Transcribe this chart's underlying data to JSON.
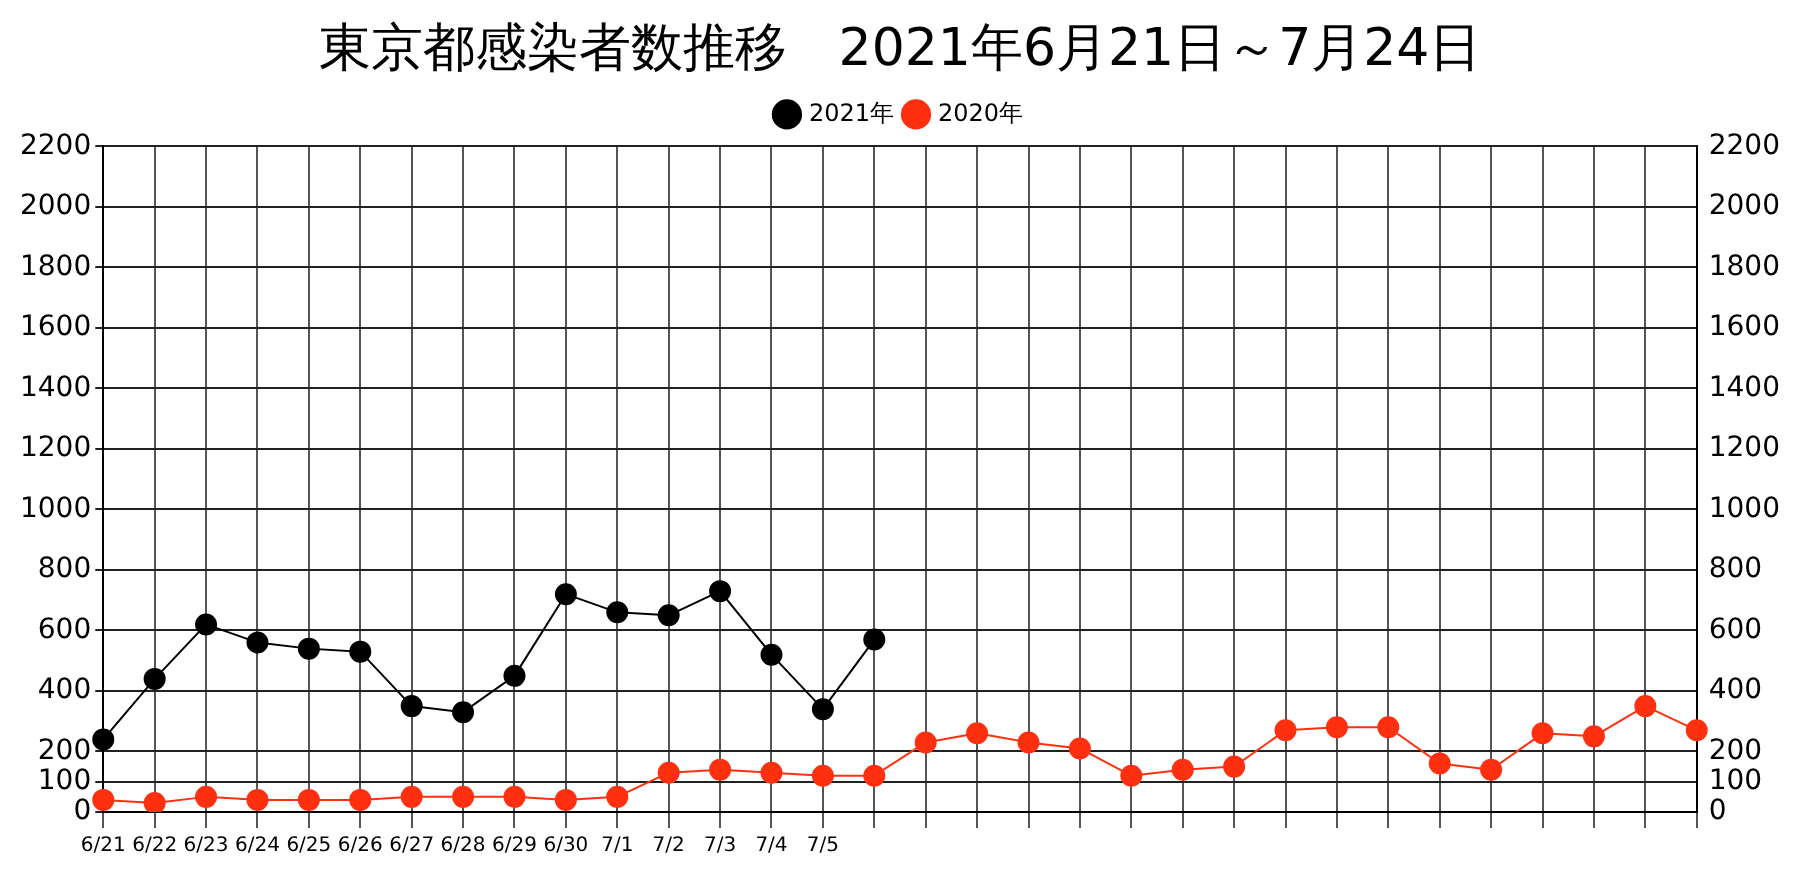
{
  "chart_data": {
    "type": "line",
    "title": "東京都感染者数推移　2021年6月21日～7月24日",
    "categories": [
      "6/21",
      "6/22",
      "6/23",
      "6/24",
      "6/25",
      "6/26",
      "6/27",
      "6/28",
      "6/29",
      "6/30",
      "7/1",
      "7/2",
      "7/3",
      "7/4",
      "7/5",
      null,
      null,
      null,
      null,
      null,
      null,
      null,
      null,
      null,
      null,
      null,
      null,
      null,
      null,
      null,
      null,
      null
    ],
    "series": [
      {
        "name": "2021年",
        "color": "#000000",
        "values": [
          240,
          440,
          620,
          560,
          540,
          530,
          350,
          330,
          450,
          720,
          660,
          650,
          730,
          520,
          340,
          570,
          null,
          null,
          null,
          null,
          null,
          null,
          null,
          null,
          null,
          null,
          null,
          null,
          null,
          null,
          null,
          null
        ]
      },
      {
        "name": "2020年",
        "color": "#ff3010",
        "values": [
          40,
          30,
          50,
          40,
          40,
          40,
          50,
          50,
          50,
          40,
          50,
          130,
          140,
          130,
          120,
          120,
          230,
          260,
          230,
          210,
          120,
          140,
          150,
          270,
          280,
          280,
          160,
          140,
          260,
          250,
          350,
          270
        ]
      }
    ],
    "ylim": [
      0,
      2200
    ],
    "yticks": [
      0,
      100,
      200,
      400,
      600,
      800,
      1000,
      1200,
      1400,
      1600,
      1800,
      2000,
      2200
    ],
    "y2lim": [
      0,
      2200
    ],
    "y2ticks": [
      0,
      100,
      200,
      400,
      600,
      800,
      1000,
      1200,
      1400,
      1600,
      1800,
      2000,
      2200
    ],
    "grid": true,
    "legend": "top",
    "marker": "circle",
    "line_style": "solid"
  }
}
